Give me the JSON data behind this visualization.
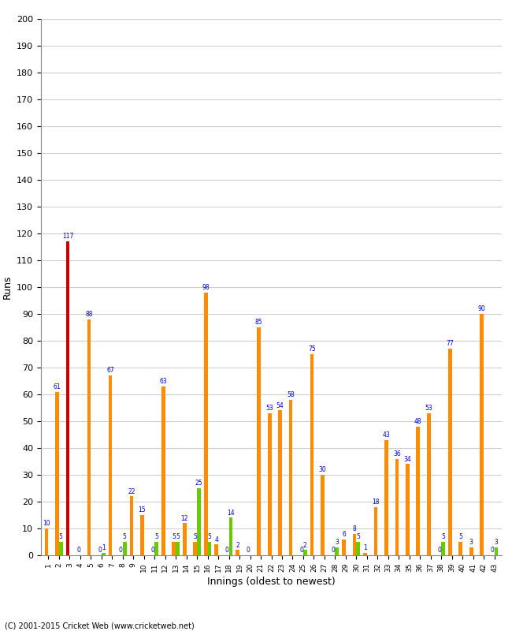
{
  "innings": [
    1,
    2,
    3,
    4,
    5,
    6,
    7,
    8,
    9,
    10,
    11,
    12,
    13,
    14,
    15,
    16,
    17,
    18,
    19,
    20,
    21,
    22,
    23,
    24,
    25,
    26,
    27,
    28,
    29,
    30,
    31,
    32,
    33,
    34,
    35,
    36,
    37,
    38,
    39,
    40,
    41,
    42,
    43
  ],
  "orange_values": [
    10,
    61,
    117,
    0,
    88,
    0,
    67,
    0,
    22,
    15,
    0,
    63,
    5,
    12,
    5,
    98,
    4,
    0,
    2,
    0,
    85,
    53,
    54,
    58,
    0,
    75,
    30,
    0,
    6,
    8,
    1,
    18,
    43,
    36,
    34,
    48,
    53,
    0,
    77,
    5,
    3,
    90,
    0
  ],
  "green_values": [
    0,
    5,
    0,
    0,
    0,
    1,
    0,
    5,
    0,
    0,
    5,
    0,
    5,
    0,
    25,
    5,
    0,
    14,
    0,
    0,
    0,
    0,
    0,
    0,
    2,
    0,
    0,
    3,
    0,
    5,
    0,
    0,
    0,
    0,
    0,
    0,
    0,
    5,
    0,
    0,
    0,
    0,
    3
  ],
  "orange_color": "#FF8C00",
  "green_color": "#66CC00",
  "red_color": "#CC0000",
  "red_innings_index": 2,
  "xlabel": "Innings (oldest to newest)",
  "ylabel": "Runs",
  "ylim": [
    0,
    200
  ],
  "yticks": [
    0,
    10,
    20,
    30,
    40,
    50,
    60,
    70,
    80,
    90,
    100,
    110,
    120,
    130,
    140,
    150,
    160,
    170,
    180,
    190,
    200
  ],
  "bg_color": "#FFFFFF",
  "grid_color": "#CCCCCC",
  "label_color": "#0000CC",
  "footer": "(C) 2001-2015 Cricket Web (www.cricketweb.net)"
}
